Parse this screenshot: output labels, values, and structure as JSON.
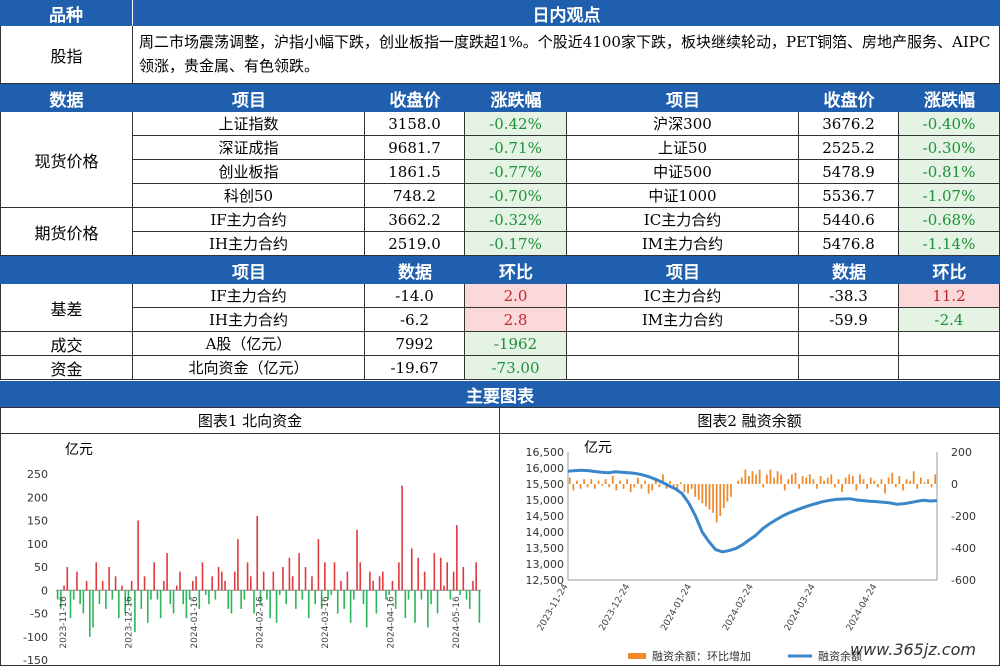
{
  "header": {
    "left": "品种",
    "right": "日内观点"
  },
  "stock_index": {
    "label": "股指",
    "text": "周二市场震荡调整，沪指小幅下跌，创业板指一度跌超1%。个股近4100家下跌，板块继续轮动，PET铜箔、房地产服务、AIPC领涨，贵金属、有色领跌。"
  },
  "data_header": {
    "col0": "数据",
    "col1": "项目",
    "col2": "收盘价",
    "col3": "涨跌幅",
    "col4": "项目",
    "col5": "收盘价",
    "col6": "涨跌幅"
  },
  "spot": {
    "label": "现货价格",
    "rows": [
      {
        "n1": "上证指数",
        "p1": "3158.0",
        "c1": "-0.42%",
        "n2": "沪深300",
        "p2": "3676.2",
        "c2": "-0.40%"
      },
      {
        "n1": "深证成指",
        "p1": "9681.7",
        "c1": "-0.71%",
        "n2": "上证50",
        "p2": "2525.2",
        "c2": "-0.30%"
      },
      {
        "n1": "创业板指",
        "p1": "1861.5",
        "c1": "-0.77%",
        "n2": "中证500",
        "p2": "5478.9",
        "c2": "-0.81%"
      },
      {
        "n1": "科创50",
        "p1": "748.2",
        "c1": "-0.70%",
        "n2": "中证1000",
        "p2": "5536.7",
        "c2": "-1.07%"
      }
    ]
  },
  "futures": {
    "label": "期货价格",
    "rows": [
      {
        "n1": "IF主力合约",
        "p1": "3662.2",
        "c1": "-0.32%",
        "n2": "IC主力合约",
        "p2": "5440.6",
        "c2": "-0.68%"
      },
      {
        "n1": "IH主力合约",
        "p1": "2519.0",
        "c1": "-0.17%",
        "n2": "IM主力合约",
        "p2": "5476.8",
        "c2": "-1.14%"
      }
    ]
  },
  "basis_header": {
    "col1": "项目",
    "col2": "数据",
    "col3": "环比",
    "col4": "项目",
    "col5": "数据",
    "col6": "环比"
  },
  "basis": {
    "label": "基差",
    "rows": [
      {
        "n1": "IF主力合约",
        "v1": "-14.0",
        "r1": "2.0",
        "n2": "IC主力合约",
        "v2": "-38.3",
        "r2": "11.2"
      },
      {
        "n1": "IH主力合约",
        "v1": "-6.2",
        "r1": "2.8",
        "n2": "IM主力合约",
        "v2": "-59.9",
        "r2": "-2.4"
      }
    ]
  },
  "volume": {
    "label": "成交",
    "name": "A股（亿元）",
    "value": "7992",
    "change": "-1962"
  },
  "capital": {
    "label": "资金",
    "name": "北向资金（亿元）",
    "value": "-19.67",
    "change": "-73.00"
  },
  "charts_header": "主要图表",
  "chart1": {
    "title": "图表1  北向资金",
    "unit": "亿元"
  },
  "chart2": {
    "title": "图表2  融资余额",
    "unit": "亿元",
    "legend_bar": "融资余额：环比增加",
    "legend_line": "融资余额"
  },
  "watermark": "www.365jz.com",
  "chart_data": [
    {
      "type": "bar",
      "ylim": [
        -150,
        250
      ],
      "yticks": [
        "250",
        "200",
        "150",
        "100",
        "50",
        "0",
        "-50",
        "-100",
        "-150"
      ],
      "xticks": [
        "2023-11-16",
        "2023-12-16",
        "2024-01-16",
        "2024-02-16",
        "2024-03-16",
        "2024-04-16",
        "2024-05-16"
      ],
      "values": [
        -20,
        -40,
        10,
        50,
        -60,
        -20,
        40,
        -30,
        -50,
        20,
        -100,
        -80,
        60,
        -30,
        20,
        -40,
        50,
        -20,
        30,
        -60,
        10,
        -50,
        -30,
        20,
        -90,
        150,
        -40,
        30,
        -70,
        -20,
        60,
        -20,
        -60,
        20,
        80,
        -30,
        -50,
        10,
        40,
        -30,
        -60,
        -20,
        20,
        30,
        -40,
        60,
        -10,
        -30,
        30,
        -20,
        50,
        40,
        20,
        -40,
        -50,
        40,
        110,
        -40,
        -20,
        60,
        30,
        -50,
        160,
        -30,
        40,
        -20,
        -60,
        40,
        -70,
        -10,
        50,
        -30,
        70,
        30,
        -40,
        80,
        -20,
        50,
        -60,
        30,
        -30,
        110,
        -40,
        60,
        -20,
        -10,
        60,
        -50,
        20,
        -40,
        40,
        -70,
        -20,
        130,
        60,
        -30,
        -80,
        40,
        20,
        -50,
        30,
        40,
        -20,
        -10,
        20,
        -40,
        60,
        225,
        -60,
        -20,
        90,
        -70,
        70,
        -20,
        40,
        -80,
        -30,
        80,
        -50,
        70,
        10,
        60,
        -20,
        40,
        140,
        -10,
        50,
        -20,
        -40,
        20,
        60,
        -70
      ]
    },
    {
      "type": "bar+line",
      "left_ylim": [
        12500,
        16500
      ],
      "right_ylim": [
        -600,
        200
      ],
      "left_yticks": [
        "16,500",
        "16,000",
        "15,500",
        "15,000",
        "14,500",
        "14,000",
        "13,500",
        "13,000",
        "12,500"
      ],
      "right_yticks": [
        "200",
        "0",
        "-200",
        "-400",
        "-600"
      ],
      "xticks": [
        "2023-11-24",
        "2023-12-24",
        "2024-01-24",
        "2024-02-24",
        "2024-03-24",
        "2024-04-24"
      ],
      "series": [
        {
          "name": "融资余额：环比增加",
          "values": [
            40,
            -40,
            20,
            -30,
            30,
            -20,
            30,
            -30,
            20,
            -10,
            30,
            -20,
            50,
            -40,
            20,
            -30,
            30,
            -50,
            -20,
            40,
            -30,
            20,
            -60,
            -40,
            30,
            -20,
            60,
            -30,
            20,
            -20,
            -40,
            10,
            -50,
            -60,
            -30,
            -80,
            -100,
            -120,
            -140,
            -160,
            -180,
            -240,
            -200,
            -150,
            -110,
            -80,
            0,
            20,
            40,
            90,
            50,
            80,
            60,
            90,
            -20,
            60,
            90,
            40,
            80,
            60,
            -40,
            30,
            60,
            70,
            -30,
            50,
            40,
            60,
            30,
            -30,
            50,
            20,
            40,
            60,
            -20,
            30,
            -50,
            40,
            60,
            50,
            -40,
            60,
            30,
            -30,
            40,
            20,
            -20,
            30,
            -60,
            40,
            70,
            -20,
            50,
            -40,
            30,
            20,
            80,
            -30,
            40,
            10,
            30,
            -20,
            60
          ]
        },
        {
          "name": "融资余额",
          "values": [
            15900,
            15920,
            15930,
            15920,
            15890,
            15870,
            15850,
            15880,
            15870,
            15850,
            15830,
            15790,
            15730,
            15650,
            15560,
            15450,
            15350,
            15200,
            14900,
            14500,
            14000,
            13700,
            13450,
            13380,
            13420,
            13480,
            13600,
            13750,
            13900,
            14100,
            14250,
            14380,
            14500,
            14600,
            14680,
            14760,
            14830,
            14890,
            14950,
            14990,
            15020,
            15030,
            15040,
            15000,
            14980,
            14960,
            14950,
            14930,
            14910,
            14870,
            14880,
            14920,
            14960,
            14990,
            14970,
            14980
          ]
        }
      ]
    }
  ]
}
